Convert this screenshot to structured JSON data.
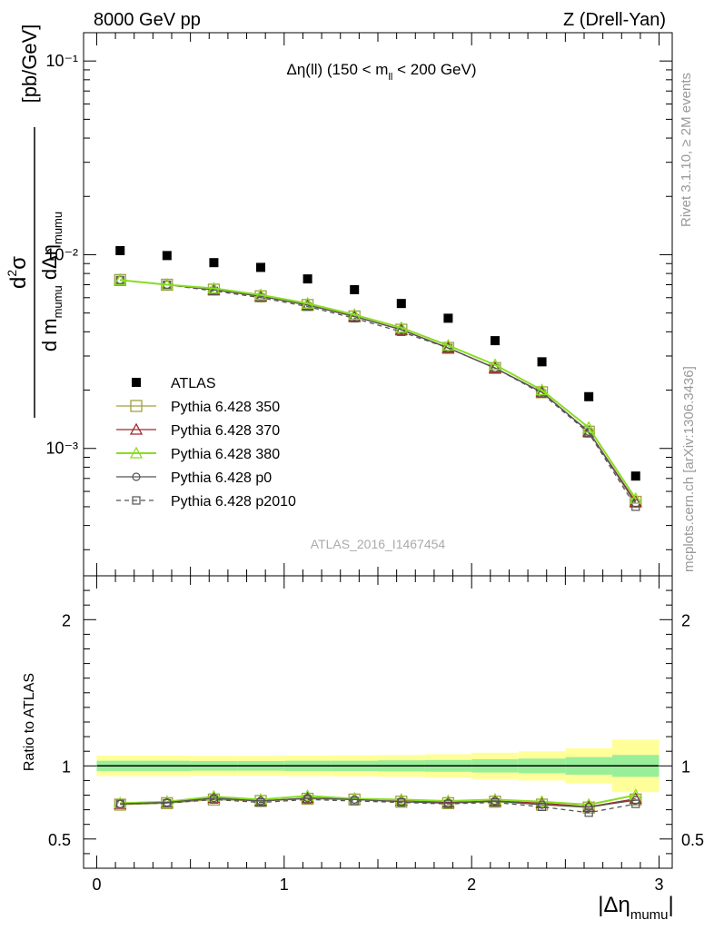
{
  "header": {
    "left": "8000 GeV pp",
    "right": "Z (Drell-Yan)"
  },
  "side_labels": {
    "rivet": "Rivet 3.1.10, ≥ 2M events",
    "mcplots": "mcplots.cern.ch [arXiv:1306.3436]"
  },
  "watermark": "ATLAS_2016_I1467454",
  "colors": {
    "atlas": "#000000",
    "p350": "#a0a040",
    "p370": "#a02828",
    "p380": "#88dd22",
    "p0": "#555555",
    "p2010": "#555555",
    "band_outer": "#ffff99",
    "band_inner": "#99ee99"
  },
  "chart_data": [
    {
      "type": "scatter",
      "panel": "main",
      "title": "Δη(ll) (150 < m_ll < 200 GeV)",
      "title_parts": {
        "pre": "Δη(ll) (150 < m",
        "sub": "ll",
        "post": " < 200 GeV)"
      },
      "ylabel": "d²σ / d m_mumu dΔη_mumu [pb/GeV]",
      "yscale": "log",
      "ylim": [
        0.00022,
        0.14
      ],
      "xlim": [
        -0.07,
        3.07
      ],
      "y_tick_labels": [
        "10⁻¹",
        "10⁻²",
        "10⁻³"
      ],
      "x": [
        0.125,
        0.375,
        0.625,
        0.875,
        1.125,
        1.375,
        1.625,
        1.875,
        2.125,
        2.375,
        2.625,
        2.875
      ],
      "series": [
        {
          "name": "ATLAS",
          "marker": "filled-square",
          "key": "atlas",
          "values": [
            0.0105,
            0.0099,
            0.0091,
            0.0086,
            0.0075,
            0.0066,
            0.0056,
            0.0047,
            0.0036,
            0.0028,
            0.00185,
            0.00072
          ]
        },
        {
          "name": "Pythia 6.428 350",
          "marker": "open-square",
          "key": "p350",
          "values": [
            0.0074,
            0.007,
            0.0066,
            0.0061,
            0.0055,
            0.0048,
            0.0041,
            0.0033,
            0.0026,
            0.00195,
            0.00122,
            0.00053
          ]
        },
        {
          "name": "Pythia 6.428 370",
          "marker": "open-triangle",
          "key": "p370",
          "values": [
            0.0074,
            0.007,
            0.0066,
            0.0061,
            0.0055,
            0.0048,
            0.0041,
            0.0033,
            0.0026,
            0.00195,
            0.00122,
            0.00053
          ]
        },
        {
          "name": "Pythia 6.428 380",
          "marker": "open-triangle",
          "key": "p380",
          "values": [
            0.0074,
            0.007,
            0.0067,
            0.0062,
            0.0056,
            0.0049,
            0.0042,
            0.0034,
            0.0027,
            0.002,
            0.00128,
            0.00055
          ]
        },
        {
          "name": "Pythia 6.428 p0",
          "marker": "open-circle",
          "key": "p0",
          "values": [
            0.0074,
            0.007,
            0.0066,
            0.0061,
            0.0055,
            0.0048,
            0.0041,
            0.0033,
            0.0026,
            0.00195,
            0.00122,
            0.00052
          ]
        },
        {
          "name": "Pythia 6.428 p2010",
          "marker": "open-square-dashed",
          "key": "p2010",
          "values": [
            0.0074,
            0.007,
            0.0065,
            0.006,
            0.0054,
            0.0047,
            0.004,
            0.0033,
            0.0026,
            0.00192,
            0.0012,
            0.0005
          ]
        }
      ]
    },
    {
      "type": "scatter",
      "panel": "ratio",
      "ylabel": "Ratio to ATLAS",
      "xlabel": "|Δη_mumu|",
      "ylim": [
        0.3,
        2.3
      ],
      "xlim": [
        -0.07,
        3.07
      ],
      "y_tick_labels": [
        "0.5",
        "1",
        "2"
      ],
      "x_tick_labels": [
        "0",
        "1",
        "2",
        "3"
      ],
      "x": [
        0.125,
        0.375,
        0.625,
        0.875,
        1.125,
        1.375,
        1.625,
        1.875,
        2.125,
        2.375,
        2.625,
        2.875
      ],
      "band_inner_halfwidth": [
        0.035,
        0.035,
        0.033,
        0.033,
        0.035,
        0.035,
        0.038,
        0.04,
        0.045,
        0.05,
        0.06,
        0.075
      ],
      "band_outer_halfwidth": [
        0.07,
        0.07,
        0.068,
        0.068,
        0.07,
        0.072,
        0.075,
        0.08,
        0.09,
        0.1,
        0.12,
        0.18
      ],
      "series": [
        {
          "name": "Pythia 6.428 350",
          "key": "p350",
          "values": [
            0.735,
            0.745,
            0.77,
            0.76,
            0.775,
            0.77,
            0.755,
            0.745,
            0.755,
            0.735,
            0.715,
            0.77
          ]
        },
        {
          "name": "Pythia 6.428 370",
          "key": "p370",
          "values": [
            0.74,
            0.75,
            0.78,
            0.76,
            0.78,
            0.775,
            0.765,
            0.75,
            0.76,
            0.745,
            0.72,
            0.775
          ]
        },
        {
          "name": "Pythia 6.428 380",
          "key": "p380",
          "values": [
            0.745,
            0.755,
            0.79,
            0.77,
            0.795,
            0.775,
            0.77,
            0.76,
            0.77,
            0.755,
            0.735,
            0.8
          ]
        },
        {
          "name": "Pythia 6.428 p0",
          "key": "p0",
          "values": [
            0.74,
            0.75,
            0.78,
            0.76,
            0.78,
            0.77,
            0.755,
            0.745,
            0.76,
            0.735,
            0.72,
            0.765
          ]
        },
        {
          "name": "Pythia 6.428 p2010",
          "key": "p2010",
          "values": [
            0.74,
            0.745,
            0.77,
            0.75,
            0.77,
            0.76,
            0.75,
            0.74,
            0.75,
            0.72,
            0.68,
            0.74
          ]
        }
      ]
    }
  ]
}
